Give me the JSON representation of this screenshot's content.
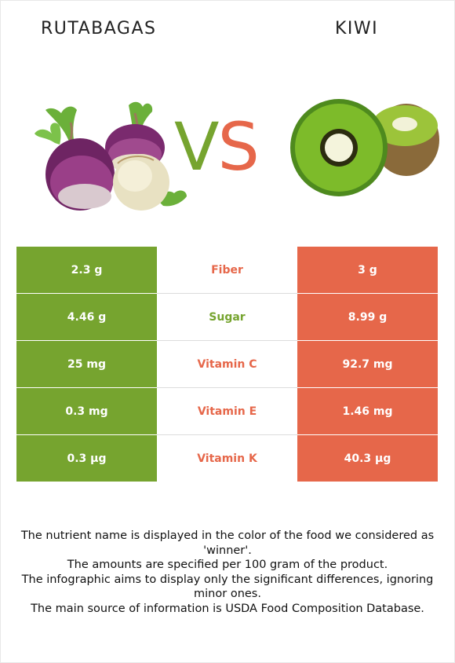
{
  "left_food": {
    "name": "RUTABAGAS",
    "color": "#76a42f"
  },
  "right_food": {
    "name": "KIWI",
    "color": "#e6674a"
  },
  "vs": {
    "v": "V",
    "s": "S"
  },
  "rows": [
    {
      "nutrient": "Fiber",
      "left": "2.3 g",
      "right": "3 g",
      "winner": "right"
    },
    {
      "nutrient": "Sugar",
      "left": "4.46 g",
      "right": "8.99 g",
      "winner": "left"
    },
    {
      "nutrient": "Vitamin C",
      "left": "25 mg",
      "right": "92.7 mg",
      "winner": "right"
    },
    {
      "nutrient": "Vitamin E",
      "left": "0.3 mg",
      "right": "1.46 mg",
      "winner": "right"
    },
    {
      "nutrient": "Vitamin K",
      "left": "0.3 µg",
      "right": "40.3 µg",
      "winner": "right"
    }
  ],
  "footnotes": [
    "The nutrient name is displayed in the color of the food we considered as 'winner'.",
    "The amounts are specified per 100 gram of the product.",
    "The infographic aims to display only the significant differences, ignoring minor ones.",
    "The main source of information is USDA Food Composition Database."
  ]
}
